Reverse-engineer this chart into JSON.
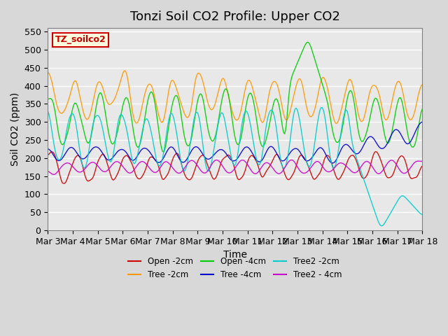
{
  "title": "Tonzi Soil CO2 Profile: Upper CO2",
  "xlabel": "Time",
  "ylabel": "Soil CO2 (ppm)",
  "ylim": [
    0,
    560
  ],
  "yticks": [
    0,
    50,
    100,
    150,
    200,
    250,
    300,
    350,
    400,
    450,
    500,
    550
  ],
  "background_color": "#e8e8e8",
  "plot_bg_color": "#e8e8e8",
  "legend_label": "TZ_soilco2",
  "series": [
    {
      "name": "Open -2cm",
      "color": "#cc0000"
    },
    {
      "name": "Tree -2cm",
      "color": "#ff9900"
    },
    {
      "name": "Open -4cm",
      "color": "#00cc00"
    },
    {
      "name": "Tree -4cm",
      "color": "#0000cc"
    },
    {
      "name": "Tree2 -2cm",
      "color": "#00cccc"
    },
    {
      "name": "Tree2 - 4cm",
      "color": "#cc00cc"
    }
  ],
  "n_points": 360,
  "start_day": 3,
  "end_day": 18,
  "title_fontsize": 13,
  "axis_label_fontsize": 10,
  "tick_fontsize": 9
}
